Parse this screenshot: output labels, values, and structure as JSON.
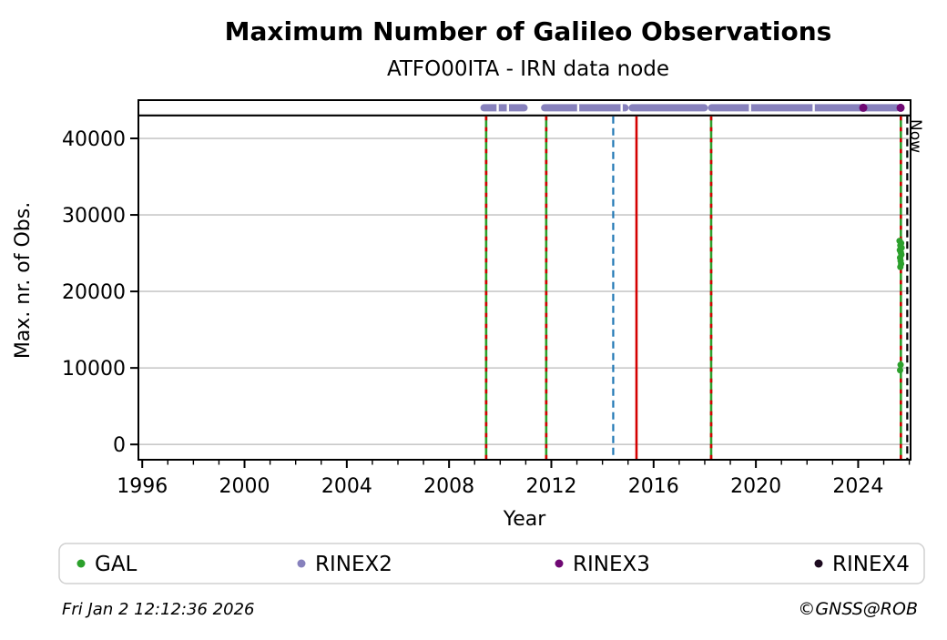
{
  "header": {
    "title": "Maximum Number of Galileo Observations",
    "subtitle": "ATFO00ITA - IRN data node"
  },
  "footer": {
    "timestamp": "Fri Jan  2 12:12:36 2026",
    "credit": "©GNSS@ROB"
  },
  "chart_data": {
    "type": "scatter",
    "title": "Maximum Number of Galileo Observations",
    "subtitle": "ATFO00ITA - IRN data node",
    "xlabel": "Year",
    "ylabel": "Max. nr. of Obs.",
    "now_label": "Now",
    "xlim": [
      1995.85,
      2026.05
    ],
    "ylim": [
      -2000,
      45000
    ],
    "xticks": [
      1996,
      2000,
      2004,
      2008,
      2012,
      2016,
      2020,
      2024
    ],
    "xminor_step": 1,
    "yticks": [
      0,
      10000,
      20000,
      30000,
      40000
    ],
    "grid": "horizontal",
    "legend_position": "bottom",
    "colors": {
      "gal": "#2ca02c",
      "rinex2": "#8781bd",
      "rinex3": "#6f0873",
      "rinex4": "#1d0b20",
      "event_red": "#d40000",
      "event_blue": "#1f77b4",
      "now_line": "#000000",
      "grid_line": "#c9c9c9",
      "reference_line": "#000000"
    },
    "reference_hline": {
      "y": 43000,
      "style": "solid"
    },
    "vlines": [
      {
        "x": 2009.45,
        "type": "gal-event"
      },
      {
        "x": 2011.8,
        "type": "gal-event"
      },
      {
        "x": 2014.42,
        "type": "blue-dashed"
      },
      {
        "x": 2015.33,
        "type": "red-solid"
      },
      {
        "x": 2018.25,
        "type": "gal-event"
      },
      {
        "x": 2025.67,
        "type": "gal-event"
      },
      {
        "x": 2025.92,
        "type": "now",
        "label": "Now"
      }
    ],
    "series": [
      {
        "name": "GAL",
        "color_key": "gal",
        "points": [
          [
            2025.62,
            26600
          ],
          [
            2025.68,
            26300
          ],
          [
            2025.65,
            26000
          ],
          [
            2025.7,
            25700
          ],
          [
            2025.63,
            25400
          ],
          [
            2025.67,
            25100
          ],
          [
            2025.69,
            24800
          ],
          [
            2025.64,
            24400
          ],
          [
            2025.66,
            24000
          ],
          [
            2025.68,
            23600
          ],
          [
            2025.65,
            23200
          ],
          [
            2025.66,
            10400
          ],
          [
            2025.64,
            9700
          ]
        ]
      },
      {
        "name": "RINEX2",
        "color_key": "rinex2",
        "band_value": 44000,
        "bands": [
          [
            2009.35,
            2010.95
          ],
          [
            2011.72,
            2014.9
          ],
          [
            2015.15,
            2018.0
          ],
          [
            2018.25,
            2025.52
          ]
        ],
        "band_gaps": [
          2009.9,
          2010.3,
          2013.05,
          2014.75,
          2019.77,
          2022.26
        ]
      },
      {
        "name": "RINEX3",
        "color_key": "rinex3",
        "points": [
          [
            2024.2,
            44000
          ],
          [
            2025.66,
            44000
          ]
        ]
      },
      {
        "name": "RINEX4",
        "color_key": "rinex4",
        "points": []
      }
    ]
  }
}
